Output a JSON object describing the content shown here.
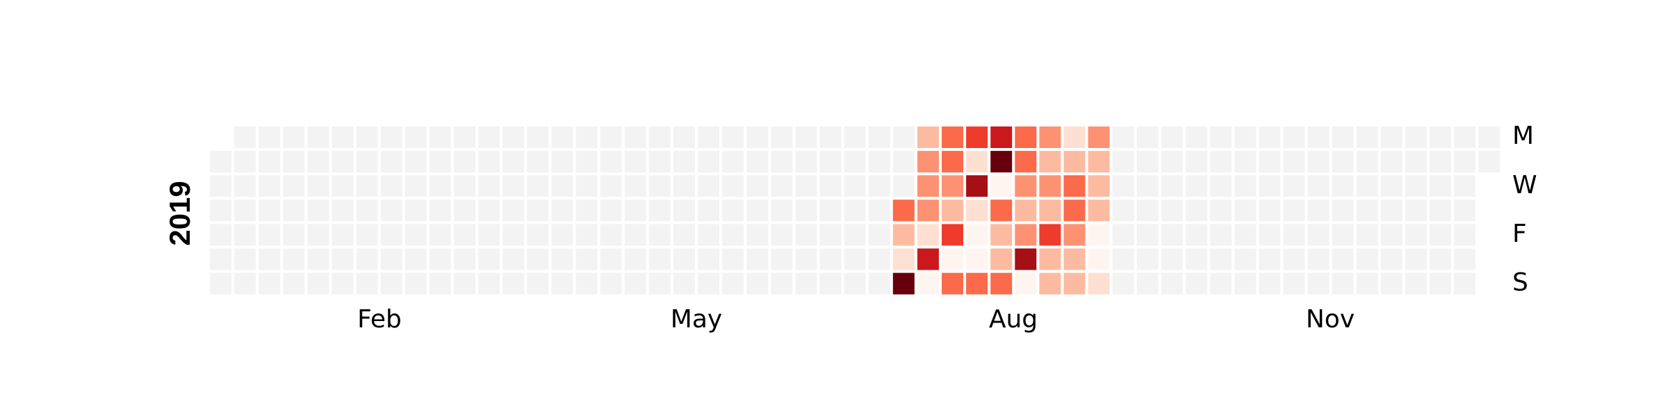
{
  "chart_data": {
    "type": "heatmap",
    "year_label": "2019",
    "month_labels": [
      "Feb",
      "May",
      "Aug",
      "Nov"
    ],
    "weekday_labels": [
      "M",
      "W",
      "F",
      "S"
    ],
    "empty_color": "#f3f3f3",
    "colormap": [
      "#fff5f0",
      "#fee0d2",
      "#fcbba1",
      "#fc9272",
      "#fb6a4a",
      "#ef3b2c",
      "#cb181d",
      "#a50f15",
      "#67000d"
    ],
    "value_range": [
      0,
      8
    ],
    "active_weeks": [
      {
        "week": 28,
        "values": [
          null,
          null,
          null,
          4,
          2,
          1,
          8
        ]
      },
      {
        "week": 29,
        "values": [
          2,
          3,
          3,
          3,
          1,
          6,
          0
        ]
      },
      {
        "week": 30,
        "values": [
          4,
          4,
          3,
          2,
          5,
          0,
          4
        ]
      },
      {
        "week": 31,
        "values": [
          5,
          1,
          7,
          1,
          0,
          0,
          4
        ]
      },
      {
        "week": 32,
        "values": [
          6,
          8,
          0,
          4,
          2,
          2,
          4
        ]
      },
      {
        "week": 33,
        "values": [
          4,
          4,
          3,
          2,
          3,
          7,
          0
        ]
      },
      {
        "week": 34,
        "values": [
          3,
          2,
          3,
          2,
          5,
          2,
          2
        ]
      },
      {
        "week": 35,
        "values": [
          1,
          2,
          4,
          4,
          3,
          2,
          2
        ]
      },
      {
        "week": 36,
        "values": [
          3,
          2,
          2,
          2,
          0,
          0,
          1
        ]
      }
    ]
  }
}
